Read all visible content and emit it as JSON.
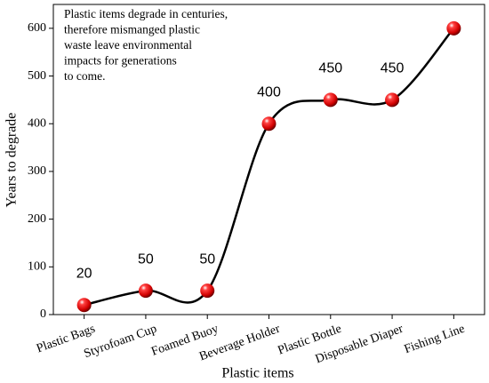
{
  "chart_data": {
    "type": "line",
    "x_label": "Plastic items",
    "y_label": "Years to degrade",
    "annotation": [
      "Plastic items degrade in centuries,",
      "therefore mismanged plastic",
      "waste leave environmental",
      "impacts for generations",
      "to come."
    ],
    "categories": [
      "Plastic Bags",
      "Styrofoam Cup",
      "Foamed Buoy",
      "Beverage Holder",
      "Plastic Bottle",
      "Disposable Diaper",
      "Fishing Line"
    ],
    "values": [
      20,
      50,
      50,
      400,
      450,
      450,
      600
    ],
    "value_labels": [
      "20",
      "50",
      "50",
      "400",
      "450",
      "450",
      null
    ],
    "color": "#000000",
    "marker_color": "#e00000",
    "ylim": [
      0,
      650
    ],
    "yticks": [
      0,
      100,
      200,
      300,
      400,
      500,
      600
    ]
  }
}
